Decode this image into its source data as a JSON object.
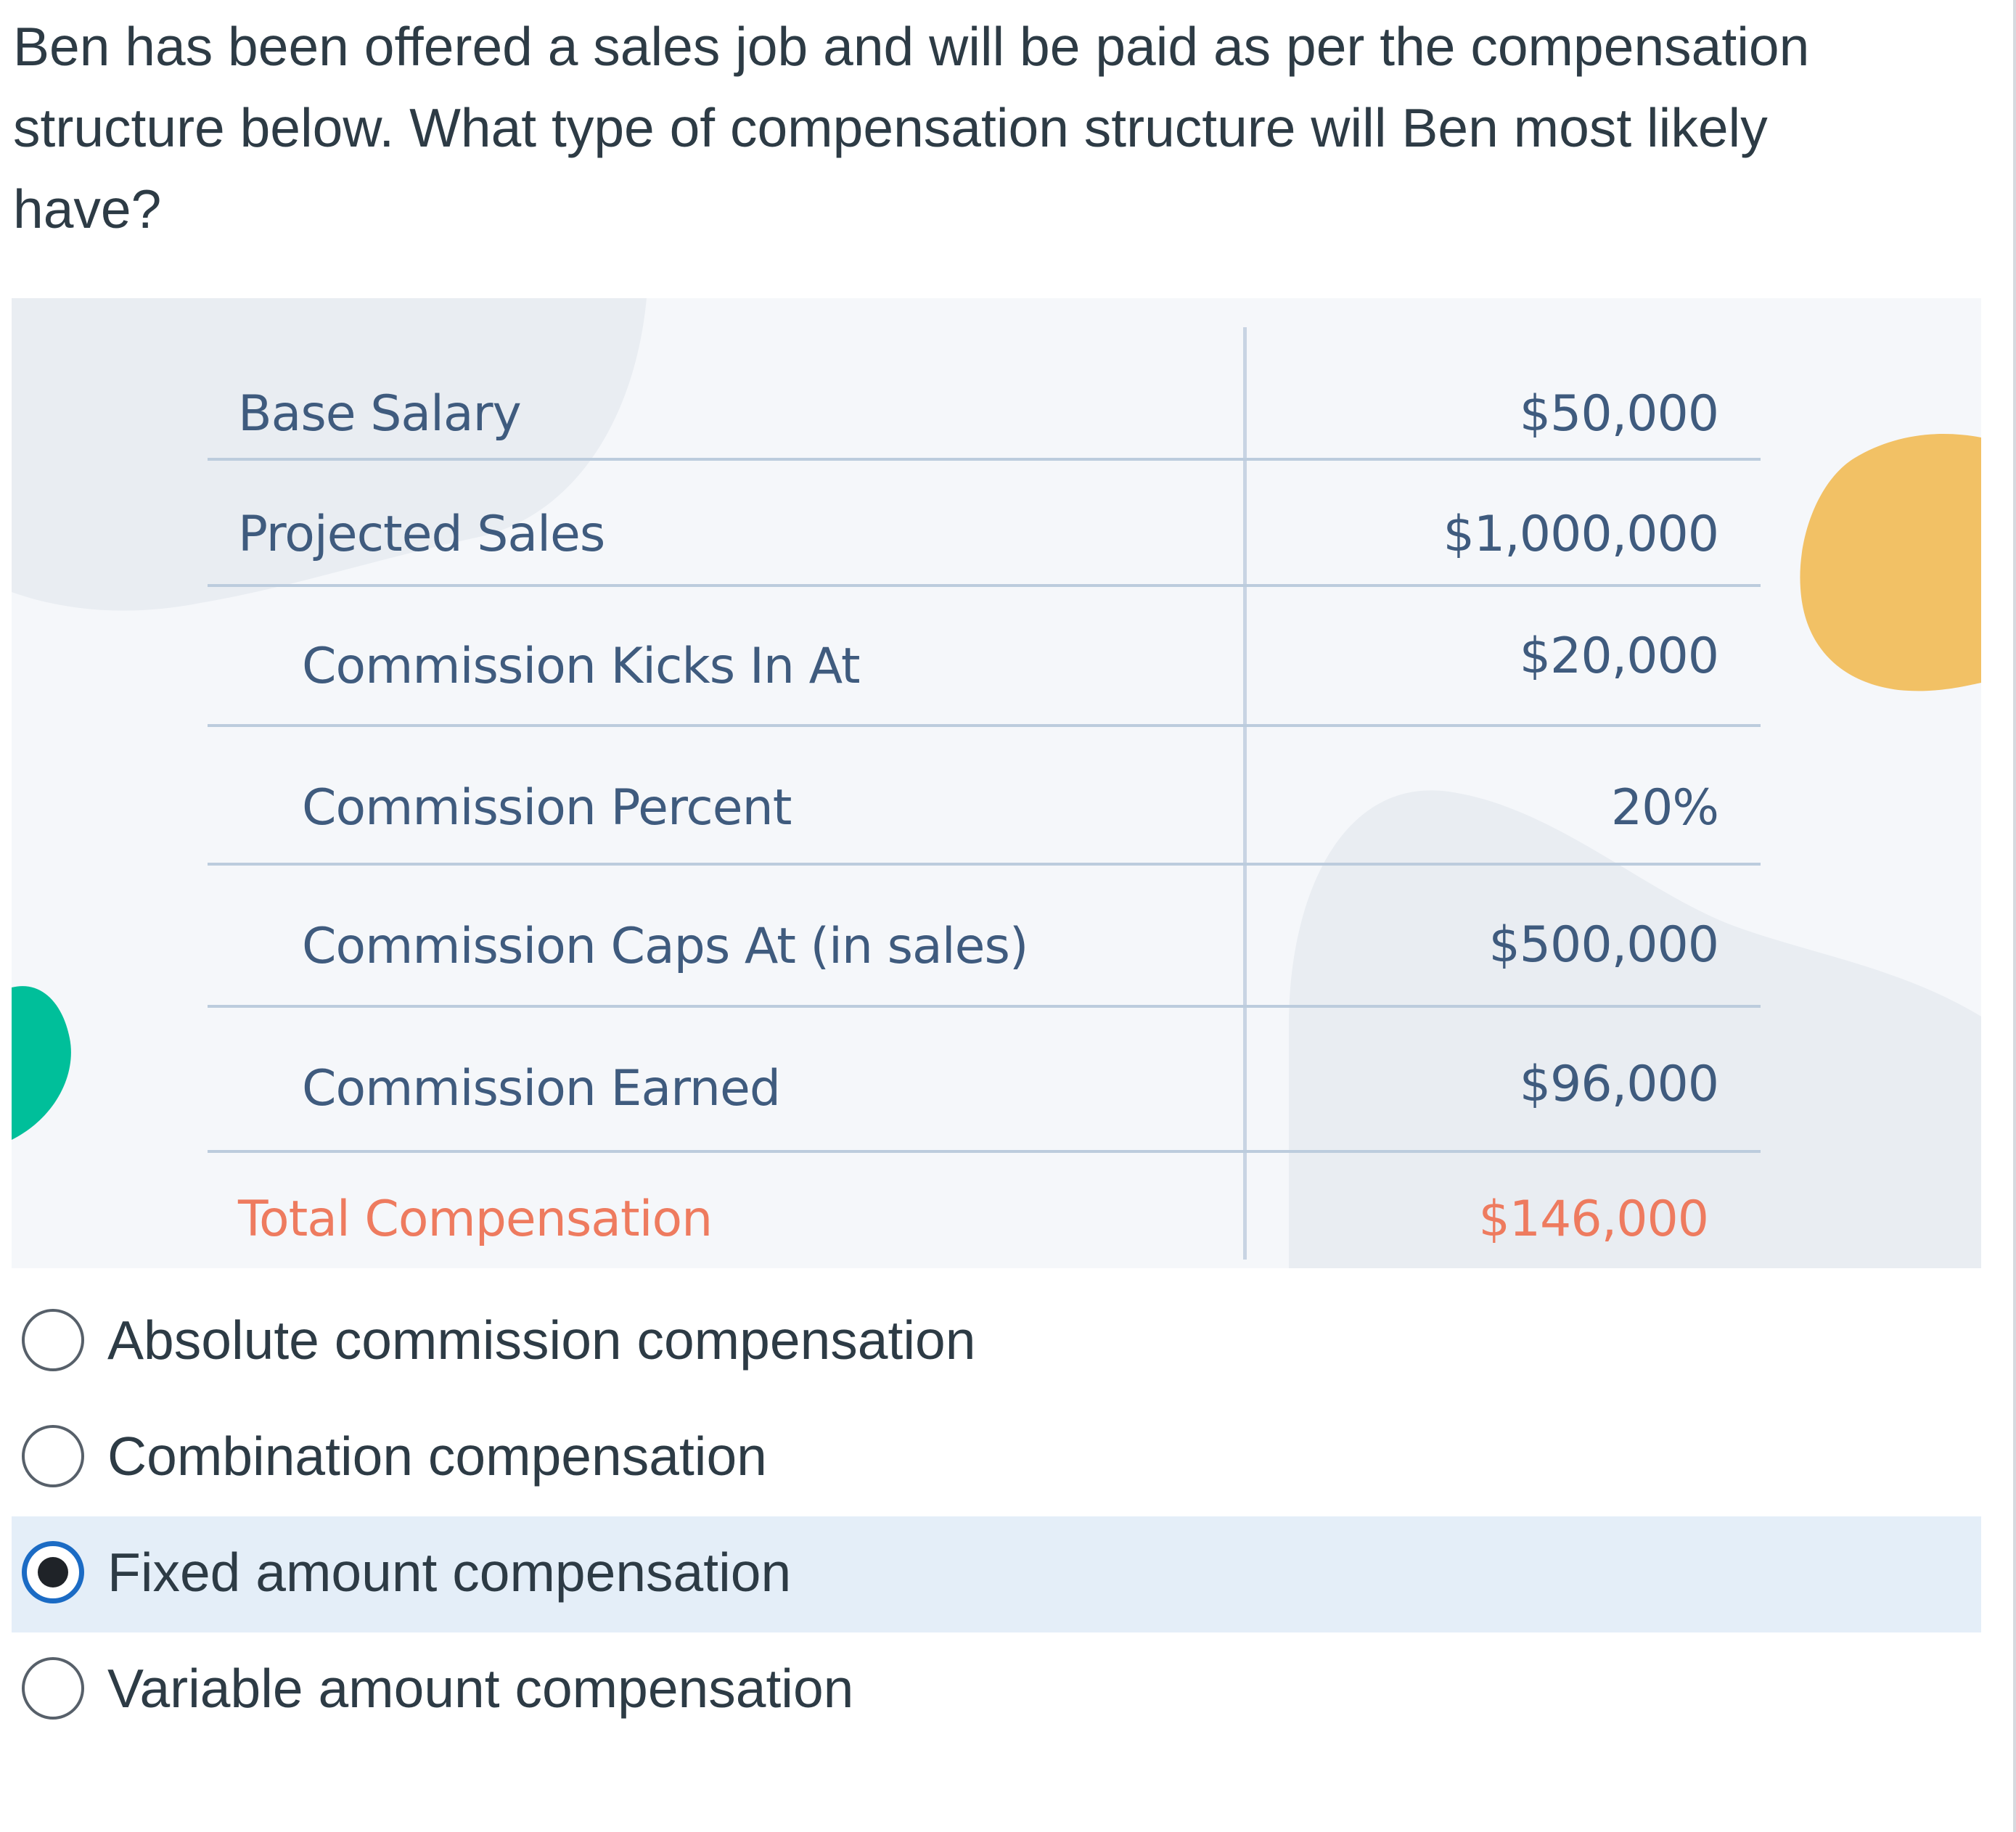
{
  "question": {
    "text": "Ben has been offered a sales job and will be paid as per the compensation structure below. What type of compensation structure will Ben most likely have?"
  },
  "compensation_table": {
    "rows": [
      {
        "label": "Base Salary",
        "value": "$50,000"
      },
      {
        "label": "Projected Sales",
        "value": "$1,000,000"
      },
      {
        "label": "Commission Kicks In At",
        "value": "$20,000"
      },
      {
        "label": "Commission Percent",
        "value": "20%"
      },
      {
        "label": "Commission Caps At (in sales)",
        "value": "$500,000"
      },
      {
        "label": "Commission Earned",
        "value": "$96,000"
      }
    ],
    "total": {
      "label": "Total Compensation",
      "value": "$146,000"
    }
  },
  "answers": {
    "options": [
      {
        "label": "Absolute commission compensation",
        "selected": false
      },
      {
        "label": "Combination compensation",
        "selected": false
      },
      {
        "label": "Fixed amount compensation",
        "selected": true
      },
      {
        "label": "Variable amount compensation",
        "selected": false
      }
    ]
  },
  "colors": {
    "question_text": "#2d3b45",
    "table_text": "#3f5b7e",
    "total_text": "#ee7b5f",
    "selected_highlight": "#e4eef8",
    "selected_radio_ring": "#1b6bc4",
    "blob_yellow": "#f2c165",
    "blob_green": "#00bf9a"
  }
}
